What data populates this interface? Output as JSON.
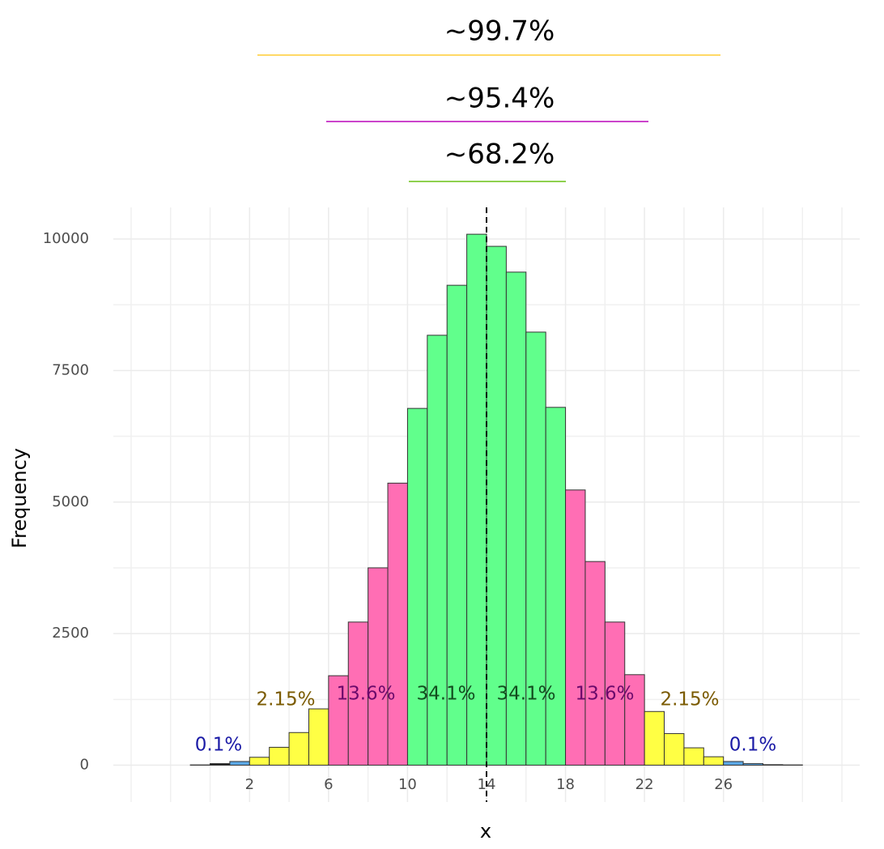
{
  "chart_data": {
    "type": "histogram",
    "x_label": "x",
    "y_label": "Frequency",
    "bins": [
      -4,
      -3,
      -2,
      -1,
      0,
      1,
      2,
      3,
      4,
      5,
      6,
      7,
      8,
      9,
      10,
      11,
      12,
      13,
      14,
      15,
      16,
      17,
      18,
      19,
      20,
      21,
      22,
      23,
      24,
      25,
      26,
      27,
      28,
      29,
      30,
      31,
      32
    ],
    "counts": [
      0,
      0,
      0,
      5,
      30,
      70,
      150,
      340,
      620,
      1070,
      1700,
      2720,
      3750,
      5360,
      6780,
      8170,
      9120,
      10090,
      9860,
      9370,
      8230,
      6800,
      5230,
      3870,
      2720,
      1720,
      1020,
      600,
      330,
      160,
      70,
      30,
      10,
      5,
      0,
      0
    ],
    "colors": [
      "#222222",
      "#222222",
      "#222222",
      "#222222",
      "#222222",
      "#5ba8e6",
      "#ffff44",
      "#ffff44",
      "#ffff44",
      "#ffff44",
      "#ff6eb4",
      "#ff6eb4",
      "#ff6eb4",
      "#ff6eb4",
      "#61ff8c",
      "#61ff8c",
      "#61ff8c",
      "#61ff8c",
      "#61ff8c",
      "#61ff8c",
      "#61ff8c",
      "#61ff8c",
      "#ff6eb4",
      "#ff6eb4",
      "#ff6eb4",
      "#ff6eb4",
      "#ffff44",
      "#ffff44",
      "#ffff44",
      "#ffff44",
      "#5ba8e6",
      "#5ba8e6",
      "#222222",
      "#222222",
      "#222222",
      "#222222"
    ],
    "xlim": [
      -4.9,
      32.9
    ],
    "ylim": [
      -700,
      10600
    ],
    "xticks": [
      2,
      6,
      10,
      14,
      18,
      22,
      26
    ],
    "yticks": [
      0,
      2500,
      5000,
      7500,
      10000
    ],
    "grid": true,
    "mean_line": 14,
    "pct_labels": [
      {
        "text": "0.1%",
        "color": "#1a1aa6"
      },
      {
        "text": "2.15%",
        "color": "#7a5a00"
      },
      {
        "text": "13.6%",
        "color": "#6b0a6b"
      },
      {
        "text": "34.1%",
        "color": "#124d1e"
      },
      {
        "text": "34.1%",
        "color": "#124d1e"
      },
      {
        "text": "13.6%",
        "color": "#6b0a6b"
      },
      {
        "text": "2.15%",
        "color": "#7a5a00"
      },
      {
        "text": "0.1%",
        "color": "#1a1aa6"
      }
    ],
    "range_labels": [
      {
        "text": "~99.7%",
        "color": "#ffd966"
      },
      {
        "text": "~95.4%",
        "color": "#cc44cc"
      },
      {
        "text": "~68.2%",
        "color": "#8ed14f"
      }
    ]
  }
}
